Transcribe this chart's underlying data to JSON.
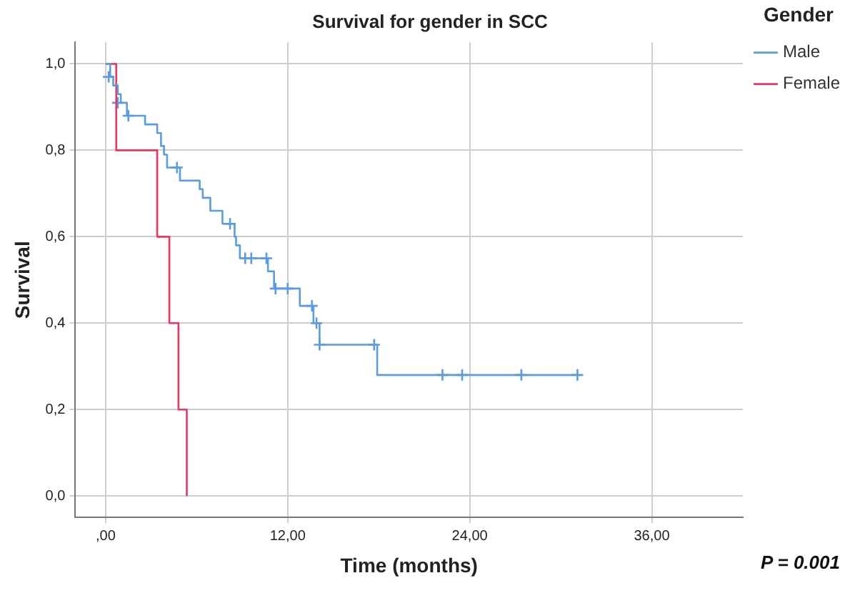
{
  "chart_data": {
    "type": "step",
    "title": "Survival for gender in SCC",
    "xlabel": "Time (months)",
    "ylabel": "Survival",
    "legend_title": "Gender",
    "annotations": [
      "P = 0.001"
    ],
    "series": [
      {
        "name": "Male",
        "color": "#5b9be0",
        "x": [
          0,
          0.3,
          0.5,
          0.8,
          1.0,
          1.4,
          2.6,
          3.4,
          3.65,
          3.85,
          4.05,
          4.9,
          6.2,
          6.4,
          6.9,
          7.7,
          8.5,
          8.6,
          8.85,
          10.7,
          11.1,
          12.8,
          13.7,
          14.1,
          17.9,
          31.1
        ],
        "values": [
          1.0,
          0.97,
          0.95,
          0.93,
          0.91,
          0.88,
          0.86,
          0.84,
          0.81,
          0.79,
          0.76,
          0.73,
          0.71,
          0.69,
          0.66,
          0.63,
          0.6,
          0.58,
          0.55,
          0.52,
          0.48,
          0.44,
          0.4,
          0.35,
          0.28,
          0.28
        ]
      },
      {
        "name": "Female",
        "color": "#e8365d",
        "x": [
          0,
          0.7,
          3.4,
          4.2,
          4.8,
          5.35
        ],
        "values": [
          1.0,
          0.8,
          0.6,
          0.4,
          0.2,
          0.0
        ]
      },
      {
        "type": "scatter",
        "marker": "cross",
        "color": "#5b9be0",
        "x": [
          0.2,
          0.8,
          1.5,
          4.7,
          8.2,
          9.2,
          9.6,
          10.6,
          11.2,
          12.0,
          13.6,
          13.9,
          14.1,
          17.7,
          22.2,
          23.5,
          27.4,
          31.1
        ],
        "values": [
          0.97,
          0.91,
          0.88,
          0.76,
          0.63,
          0.55,
          0.55,
          0.55,
          0.48,
          0.48,
          0.44,
          0.4,
          0.35,
          0.35,
          0.28,
          0.28,
          0.28,
          0.28
        ]
      }
    ],
    "xlim": [
      -2,
      42
    ],
    "xticks": [
      {
        "value": 0,
        "label": ",00"
      },
      {
        "value": 12,
        "label": "12,00"
      },
      {
        "value": 24,
        "label": "24,00"
      },
      {
        "value": 36,
        "label": "36,00"
      }
    ],
    "ylim": [
      -0.05,
      1.05
    ],
    "yticks": [
      {
        "value": 0,
        "label": "0,0"
      },
      {
        "value": 0.2,
        "label": "0,2"
      },
      {
        "value": 0.4,
        "label": "0,4"
      },
      {
        "value": 0.6,
        "label": "0,6"
      },
      {
        "value": 0.8,
        "label": "0,8"
      },
      {
        "value": 1.0,
        "label": "1,0"
      }
    ],
    "grid": true,
    "legend": "right"
  }
}
